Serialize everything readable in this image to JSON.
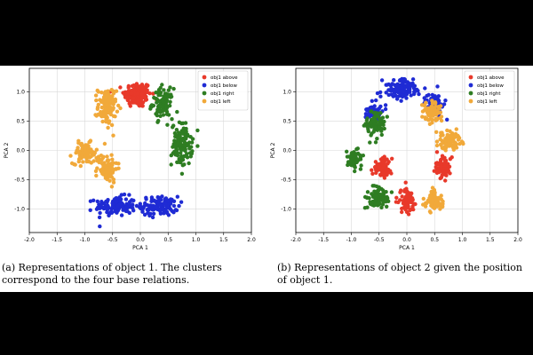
{
  "figure": {
    "captions": [
      "(a) Representations of object 1.  The clusters correspond to the four base relations.",
      "(b) Representations of object 2 given the position of object 1."
    ]
  },
  "chart_data": [
    {
      "type": "scatter",
      "xlabel": "PCA 1",
      "ylabel": "PCA 2",
      "xlim": [
        -2.0,
        2.0
      ],
      "ylim": [
        -1.4,
        1.4
      ],
      "xticks": [
        "-2.0",
        "-1.5",
        "-1.0",
        "-0.5",
        "0.0",
        "0.5",
        "1.0",
        "1.5",
        "2.0"
      ],
      "yticks": [
        "-1.0",
        "-0.5",
        "0.0",
        "0.5",
        "1.0"
      ],
      "grid": true,
      "legend_position": "top-right",
      "series": [
        {
          "name": "obj1 above",
          "color": "#e8392a",
          "clusters": [
            {
              "cx": -0.05,
              "cy": 0.95,
              "sx": 0.22,
              "sy": 0.2,
              "n": 150
            }
          ]
        },
        {
          "name": "obj1 below",
          "color": "#1f2bd4",
          "clusters": [
            {
              "cx": -0.45,
              "cy": -0.95,
              "sx": 0.33,
              "sy": 0.15,
              "n": 120
            },
            {
              "cx": 0.35,
              "cy": -0.95,
              "sx": 0.3,
              "sy": 0.15,
              "n": 110
            }
          ]
        },
        {
          "name": "obj1 right",
          "color": "#2e7d22",
          "clusters": [
            {
              "cx": 0.4,
              "cy": 0.8,
              "sx": 0.17,
              "sy": 0.23,
              "n": 100
            },
            {
              "cx": 0.75,
              "cy": 0.1,
              "sx": 0.17,
              "sy": 0.33,
              "n": 120
            }
          ]
        },
        {
          "name": "obj1 left",
          "color": "#f1a93a",
          "clusters": [
            {
              "cx": -0.6,
              "cy": 0.75,
              "sx": 0.15,
              "sy": 0.3,
              "n": 110
            },
            {
              "cx": -1.0,
              "cy": -0.05,
              "sx": 0.2,
              "sy": 0.16,
              "n": 90
            },
            {
              "cx": -0.6,
              "cy": -0.3,
              "sx": 0.17,
              "sy": 0.22,
              "n": 90
            }
          ]
        }
      ]
    },
    {
      "type": "scatter",
      "xlabel": "PCA 1",
      "ylabel": "PCA 2",
      "xlim": [
        -2.0,
        2.0
      ],
      "ylim": [
        -1.4,
        1.4
      ],
      "xticks": [
        "-2.0",
        "-1.5",
        "-1.0",
        "-0.5",
        "0.0",
        "0.5",
        "1.0",
        "1.5",
        "2.0"
      ],
      "yticks": [
        "-1.0",
        "-0.5",
        "0.0",
        "0.5",
        "1.0"
      ],
      "grid": true,
      "legend_position": "top-right",
      "series": [
        {
          "name": "obj1 above",
          "color": "#e8392a",
          "clusters": [
            {
              "cx": -0.45,
              "cy": -0.3,
              "sx": 0.15,
              "sy": 0.15,
              "n": 70
            },
            {
              "cx": 0.0,
              "cy": -0.85,
              "sx": 0.15,
              "sy": 0.18,
              "n": 70
            },
            {
              "cx": 0.65,
              "cy": -0.3,
              "sx": 0.15,
              "sy": 0.16,
              "n": 70
            }
          ]
        },
        {
          "name": "obj1 below",
          "color": "#1f2bd4",
          "clusters": [
            {
              "cx": -0.1,
              "cy": 1.05,
              "sx": 0.3,
              "sy": 0.15,
              "n": 120
            },
            {
              "cx": 0.5,
              "cy": 0.8,
              "sx": 0.15,
              "sy": 0.15,
              "n": 60
            },
            {
              "cx": -0.6,
              "cy": 0.65,
              "sx": 0.15,
              "sy": 0.15,
              "n": 60
            }
          ]
        },
        {
          "name": "obj1 right",
          "color": "#2e7d22",
          "clusters": [
            {
              "cx": -0.55,
              "cy": 0.45,
              "sx": 0.15,
              "sy": 0.2,
              "n": 80
            },
            {
              "cx": -0.95,
              "cy": -0.15,
              "sx": 0.13,
              "sy": 0.15,
              "n": 70
            },
            {
              "cx": -0.5,
              "cy": -0.8,
              "sx": 0.18,
              "sy": 0.15,
              "n": 80
            }
          ]
        },
        {
          "name": "obj1 left",
          "color": "#f1a93a",
          "clusters": [
            {
              "cx": 0.45,
              "cy": 0.65,
              "sx": 0.16,
              "sy": 0.18,
              "n": 80
            },
            {
              "cx": 0.75,
              "cy": 0.15,
              "sx": 0.2,
              "sy": 0.15,
              "n": 80
            },
            {
              "cx": 0.5,
              "cy": -0.85,
              "sx": 0.16,
              "sy": 0.16,
              "n": 70
            }
          ]
        }
      ]
    }
  ]
}
